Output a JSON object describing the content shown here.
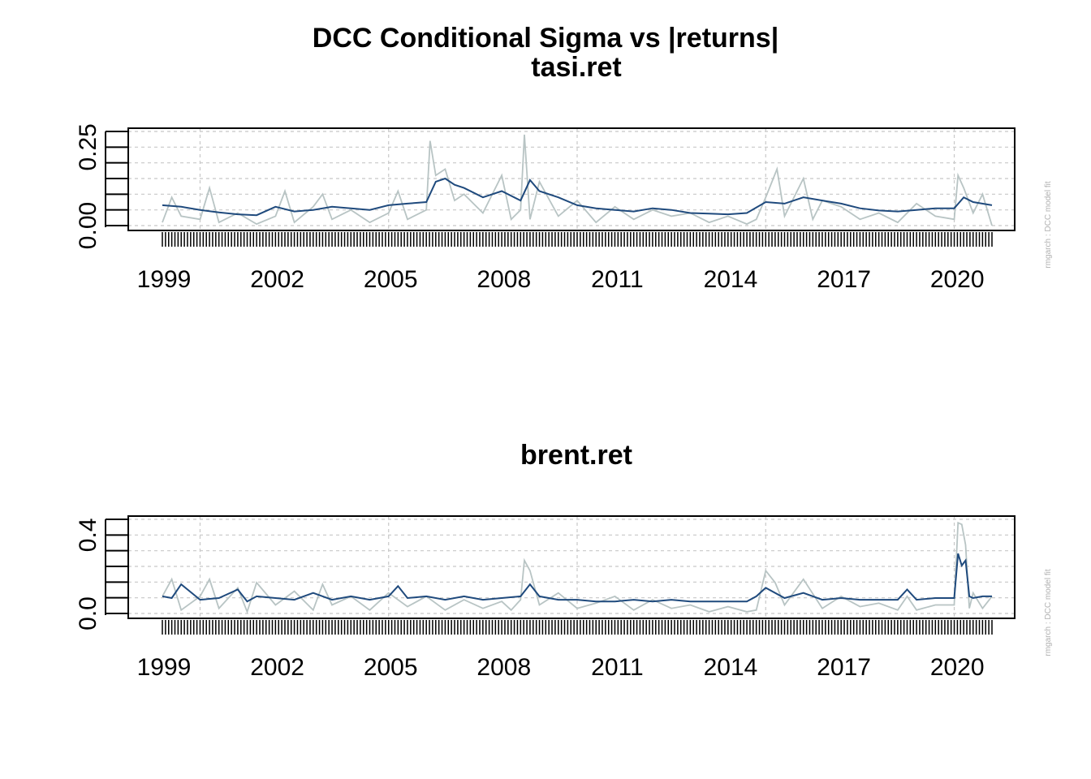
{
  "title": "DCC Conditional Sigma vs |returns|",
  "colors": {
    "sigma": "#1f4a7d",
    "abs_returns": "#b8c4c4",
    "grid": "#c8c8c8",
    "frame": "#000000"
  },
  "side_note": "rmgarch  :  DCC model fit",
  "chart_data": [
    {
      "type": "line",
      "title": "tasi.ret",
      "x_labels": [
        "1999",
        "2002",
        "2005",
        "2008",
        "2011",
        "2014",
        "2017",
        "2020"
      ],
      "x_range": [
        1999.0,
        2021.0
      ],
      "y_ticks": [
        "0.00",
        "0.25"
      ],
      "ylim": [
        0.0,
        0.3
      ],
      "grid": true,
      "series": [
        {
          "key": "sigma",
          "x": [
            1999.0,
            1999.5,
            2000.0,
            2000.5,
            2001.0,
            2001.5,
            2002.0,
            2002.5,
            2003.0,
            2003.5,
            2004.0,
            2004.5,
            2005.0,
            2005.5,
            2006.0,
            2006.25,
            2006.5,
            2006.75,
            2007.0,
            2007.5,
            2008.0,
            2008.5,
            2008.75,
            2009.0,
            2009.5,
            2010.0,
            2010.5,
            2011.0,
            2011.5,
            2012.0,
            2012.5,
            2013.0,
            2013.5,
            2014.0,
            2014.5,
            2015.0,
            2015.5,
            2016.0,
            2016.5,
            2017.0,
            2017.5,
            2018.0,
            2018.5,
            2019.0,
            2019.5,
            2020.0,
            2020.25,
            2020.5,
            2021.0
          ],
          "y": [
            0.065,
            0.06,
            0.05,
            0.042,
            0.036,
            0.033,
            0.06,
            0.045,
            0.05,
            0.06,
            0.055,
            0.05,
            0.065,
            0.07,
            0.075,
            0.14,
            0.15,
            0.13,
            0.12,
            0.09,
            0.11,
            0.08,
            0.145,
            0.11,
            0.09,
            0.065,
            0.055,
            0.05,
            0.045,
            0.055,
            0.05,
            0.04,
            0.038,
            0.036,
            0.04,
            0.075,
            0.07,
            0.09,
            0.08,
            0.07,
            0.055,
            0.048,
            0.045,
            0.05,
            0.055,
            0.055,
            0.09,
            0.075,
            0.065
          ]
        },
        {
          "key": "abs_returns",
          "x": [
            1999.0,
            1999.25,
            1999.5,
            2000.0,
            2000.25,
            2000.5,
            2001.0,
            2001.5,
            2002.0,
            2002.25,
            2002.5,
            2003.0,
            2003.25,
            2003.5,
            2004.0,
            2004.5,
            2005.0,
            2005.25,
            2005.5,
            2006.0,
            2006.1,
            2006.25,
            2006.5,
            2006.75,
            2007.0,
            2007.5,
            2008.0,
            2008.25,
            2008.5,
            2008.6,
            2008.75,
            2009.0,
            2009.5,
            2010.0,
            2010.5,
            2011.0,
            2011.5,
            2012.0,
            2012.5,
            2013.0,
            2013.5,
            2014.0,
            2014.5,
            2014.75,
            2015.0,
            2015.3,
            2015.5,
            2016.0,
            2016.25,
            2016.5,
            2017.0,
            2017.5,
            2018.0,
            2018.5,
            2019.0,
            2019.5,
            2020.0,
            2020.1,
            2020.25,
            2020.5,
            2020.75,
            2021.0
          ],
          "y": [
            0.01,
            0.09,
            0.03,
            0.02,
            0.12,
            0.01,
            0.04,
            0.005,
            0.03,
            0.11,
            0.01,
            0.06,
            0.1,
            0.02,
            0.05,
            0.01,
            0.04,
            0.11,
            0.02,
            0.05,
            0.27,
            0.16,
            0.18,
            0.08,
            0.1,
            0.04,
            0.16,
            0.02,
            0.05,
            0.29,
            0.02,
            0.14,
            0.03,
            0.08,
            0.01,
            0.06,
            0.02,
            0.05,
            0.03,
            0.04,
            0.01,
            0.03,
            0.005,
            0.02,
            0.09,
            0.18,
            0.03,
            0.15,
            0.02,
            0.08,
            0.06,
            0.02,
            0.04,
            0.01,
            0.07,
            0.03,
            0.02,
            0.16,
            0.12,
            0.04,
            0.1,
            0.0
          ]
        }
      ]
    },
    {
      "type": "line",
      "title": "brent.ret",
      "x_labels": [
        "1999",
        "2002",
        "2005",
        "2008",
        "2011",
        "2014",
        "2017",
        "2020"
      ],
      "x_range": [
        1999.0,
        2021.0
      ],
      "y_ticks": [
        "0.0",
        "0.4"
      ],
      "ylim": [
        0.0,
        0.55
      ],
      "grid": true,
      "series": [
        {
          "key": "sigma",
          "x": [
            1999.0,
            1999.25,
            1999.5,
            2000.0,
            2000.5,
            2001.0,
            2001.25,
            2001.5,
            2002.0,
            2002.5,
            2003.0,
            2003.5,
            2004.0,
            2004.5,
            2005.0,
            2005.25,
            2005.5,
            2006.0,
            2006.5,
            2007.0,
            2007.5,
            2008.0,
            2008.5,
            2008.75,
            2009.0,
            2009.5,
            2010.0,
            2010.5,
            2011.0,
            2011.5,
            2012.0,
            2012.5,
            2013.0,
            2013.5,
            2014.0,
            2014.5,
            2014.75,
            2015.0,
            2015.5,
            2016.0,
            2016.5,
            2017.0,
            2017.5,
            2018.0,
            2018.5,
            2018.75,
            2019.0,
            2019.5,
            2020.0,
            2020.1,
            2020.2,
            2020.3,
            2020.4,
            2020.5,
            2020.75,
            2021.0
          ],
          "y": [
            0.1,
            0.09,
            0.17,
            0.08,
            0.09,
            0.14,
            0.07,
            0.1,
            0.09,
            0.08,
            0.12,
            0.08,
            0.1,
            0.08,
            0.1,
            0.16,
            0.09,
            0.1,
            0.08,
            0.1,
            0.08,
            0.09,
            0.1,
            0.17,
            0.1,
            0.08,
            0.08,
            0.07,
            0.07,
            0.08,
            0.07,
            0.08,
            0.07,
            0.07,
            0.07,
            0.07,
            0.1,
            0.15,
            0.09,
            0.12,
            0.08,
            0.09,
            0.08,
            0.08,
            0.08,
            0.14,
            0.08,
            0.09,
            0.09,
            0.35,
            0.28,
            0.31,
            0.1,
            0.09,
            0.1,
            0.1
          ]
        },
        {
          "key": "abs_returns",
          "x": [
            1999.0,
            1999.25,
            1999.5,
            2000.0,
            2000.25,
            2000.5,
            2001.0,
            2001.25,
            2001.5,
            2002.0,
            2002.5,
            2003.0,
            2003.25,
            2003.5,
            2004.0,
            2004.5,
            2005.0,
            2005.5,
            2006.0,
            2006.5,
            2007.0,
            2007.5,
            2008.0,
            2008.25,
            2008.5,
            2008.6,
            2008.75,
            2009.0,
            2009.5,
            2010.0,
            2010.5,
            2011.0,
            2011.5,
            2012.0,
            2012.5,
            2013.0,
            2013.5,
            2014.0,
            2014.5,
            2014.75,
            2015.0,
            2015.25,
            2015.5,
            2016.0,
            2016.5,
            2017.0,
            2017.5,
            2018.0,
            2018.5,
            2018.75,
            2019.0,
            2019.5,
            2020.0,
            2020.1,
            2020.2,
            2020.3,
            2020.4,
            2020.5,
            2020.75,
            2021.0
          ],
          "y": [
            0.1,
            0.2,
            0.02,
            0.1,
            0.2,
            0.03,
            0.15,
            0.01,
            0.18,
            0.05,
            0.13,
            0.02,
            0.17,
            0.05,
            0.1,
            0.02,
            0.12,
            0.04,
            0.1,
            0.02,
            0.08,
            0.03,
            0.07,
            0.02,
            0.08,
            0.31,
            0.25,
            0.05,
            0.12,
            0.03,
            0.06,
            0.1,
            0.02,
            0.08,
            0.03,
            0.05,
            0.01,
            0.04,
            0.01,
            0.02,
            0.25,
            0.18,
            0.05,
            0.2,
            0.03,
            0.1,
            0.04,
            0.06,
            0.02,
            0.1,
            0.02,
            0.05,
            0.05,
            0.53,
            0.52,
            0.4,
            0.03,
            0.12,
            0.03,
            0.1
          ]
        }
      ]
    }
  ]
}
